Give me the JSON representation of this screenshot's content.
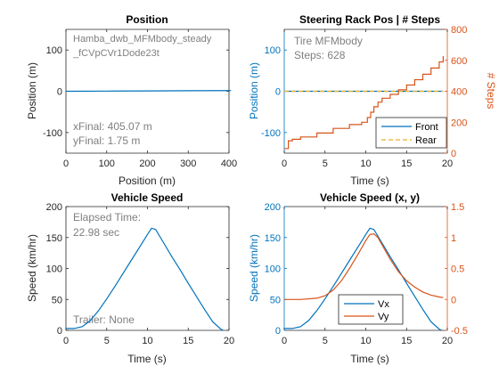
{
  "colors": {
    "blue": "#0072BD",
    "orange": "#D95319",
    "yellow": "#EDB120",
    "axis": "#262626",
    "annot": "#7f7f7f"
  },
  "chart_data": [
    {
      "id": "position",
      "type": "line",
      "title": "Position",
      "xlabel": "Position (m)",
      "ylabel": "Position (m)",
      "xlim": [
        0,
        400
      ],
      "ylim": [
        -150,
        150
      ],
      "xticks": [
        0,
        100,
        200,
        300,
        400
      ],
      "yticks": [
        -100,
        0,
        100
      ],
      "grid": false,
      "series": [
        {
          "color": "blue",
          "x": [
            0,
            100,
            200,
            300,
            405.07
          ],
          "y": [
            0,
            0.4,
            0.9,
            1.3,
            1.75
          ]
        }
      ],
      "annotations": {
        "name": "Hamba_dwb_MFMbody_steady_fCVpCVr1Dode23t",
        "xfinal": "xFinal: 405.07 m",
        "yfinal": "yFinal: 1.75 m"
      }
    },
    {
      "id": "steering",
      "type": "line",
      "title": "Steering Rack Pos | # Steps",
      "xlabel": "Time (s)",
      "ylabel": "Position (m)",
      "ylabel_right": "# Steps",
      "xlim": [
        0,
        20
      ],
      "ylim": [
        -150,
        150
      ],
      "ylim_right": [
        0,
        800
      ],
      "xticks": [
        0,
        5,
        10,
        15,
        20
      ],
      "yticks": [
        -100,
        0,
        100
      ],
      "yticks_right": [
        0,
        200,
        400,
        600,
        800
      ],
      "legend": {
        "position": "bottom-right",
        "entries": [
          "Front",
          "Rear"
        ]
      },
      "series": [
        {
          "name": "Front",
          "color": "blue",
          "dash": false,
          "x": [
            0,
            19.5
          ],
          "y": [
            0,
            0
          ]
        },
        {
          "name": "Rear",
          "color": "yellow",
          "dash": true,
          "x": [
            0,
            19.5
          ],
          "y": [
            0,
            0
          ]
        }
      ],
      "steps_series": {
        "color": "orange",
        "x": [
          0,
          0.5,
          1,
          2,
          4,
          6,
          8,
          9.5,
          10.2,
          10.6,
          11,
          11.5,
          12,
          13,
          14,
          15,
          16,
          17,
          18,
          19,
          19.5
        ],
        "y": [
          30,
          80,
          90,
          105,
          130,
          160,
          185,
          200,
          230,
          265,
          300,
          330,
          355,
          380,
          410,
          440,
          475,
          510,
          550,
          590,
          628
        ]
      },
      "annotations": {
        "label1": "Tire MFMbody",
        "label2": "Steps: 628"
      }
    },
    {
      "id": "speed",
      "type": "line",
      "title": "Vehicle Speed",
      "xlabel": "Time (s)",
      "ylabel": "Speed (km/hr)",
      "xlim": [
        0,
        20
      ],
      "ylim": [
        0,
        200
      ],
      "xticks": [
        0,
        5,
        10,
        15,
        20
      ],
      "yticks": [
        0,
        50,
        100,
        150,
        200
      ],
      "series": [
        {
          "color": "blue",
          "x": [
            0,
            1,
            2,
            3,
            4,
            5,
            6,
            7,
            8,
            9,
            10,
            10.5,
            11,
            12,
            13,
            14,
            15,
            16,
            17,
            18,
            19,
            19.3
          ],
          "y": [
            3,
            3,
            6,
            16,
            32,
            51,
            71,
            92,
            113,
            134,
            155,
            165,
            163,
            141,
            119,
            98,
            76,
            55,
            34,
            14,
            2,
            0
          ]
        }
      ],
      "annotations": {
        "elapsed1": "Elapsed Time:",
        "elapsed2": "22.98 sec",
        "trailer": "Trailer: None"
      }
    },
    {
      "id": "speedxy",
      "type": "line",
      "title": "Vehicle Speed (x, y)",
      "xlabel": "Time (s)",
      "ylabel": "Speed (km/hr)",
      "xlim": [
        0,
        20
      ],
      "ylim": [
        0,
        200
      ],
      "ylim_right": [
        -0.5,
        1.5
      ],
      "xticks": [
        0,
        5,
        10,
        15,
        20
      ],
      "yticks": [
        0,
        50,
        100,
        150,
        200
      ],
      "yticks_right": [
        -0.5,
        0,
        0.5,
        1,
        1.5
      ],
      "legend": {
        "position": "bottom-center",
        "entries": [
          "Vx",
          "Vy"
        ]
      },
      "series": [
        {
          "name": "Vx",
          "color": "blue",
          "axis": "left",
          "x": [
            0,
            1,
            2,
            3,
            4,
            5,
            6,
            7,
            8,
            9,
            10,
            10.5,
            11,
            12,
            13,
            14,
            15,
            16,
            17,
            18,
            19,
            19.3
          ],
          "y": [
            3,
            3,
            6,
            16,
            32,
            51,
            71,
            92,
            113,
            134,
            155,
            165,
            163,
            141,
            119,
            98,
            76,
            55,
            34,
            14,
            2,
            0
          ]
        },
        {
          "name": "Vy",
          "color": "orange",
          "axis": "right",
          "x": [
            0,
            2,
            4,
            5,
            6,
            7,
            8,
            9,
            10,
            10.5,
            11,
            11.5,
            12,
            13,
            14,
            15,
            16,
            17,
            18,
            19,
            19.5
          ],
          "y": [
            0,
            0,
            0.02,
            0.06,
            0.15,
            0.3,
            0.5,
            0.72,
            0.95,
            1.05,
            1.06,
            1.0,
            0.88,
            0.65,
            0.45,
            0.3,
            0.2,
            0.12,
            0.07,
            0.04,
            0.03
          ]
        }
      ]
    }
  ]
}
